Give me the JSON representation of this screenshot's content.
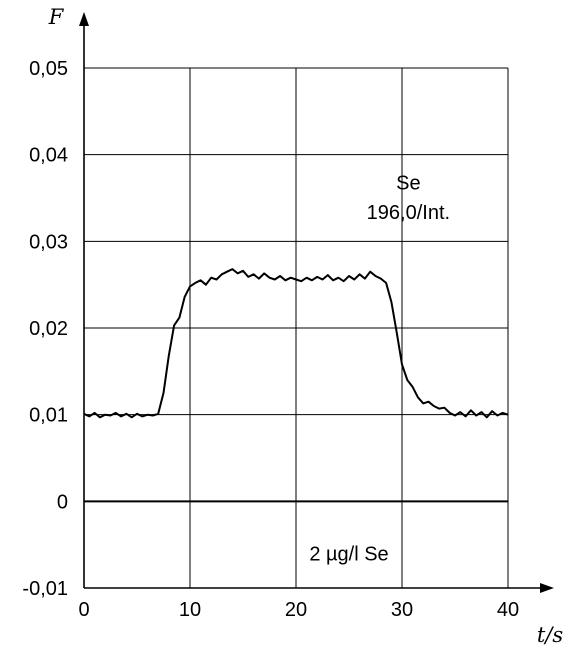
{
  "chart_data": {
    "type": "line",
    "ylabel": "F",
    "xlabel": "t/s",
    "xlim": [
      0,
      40
    ],
    "ylim": [
      -0.01,
      0.05
    ],
    "grid": true,
    "x_ticks": [
      0,
      10,
      20,
      30,
      40
    ],
    "x_tick_labels": [
      "0",
      "10",
      "20",
      "30",
      "40"
    ],
    "y_ticks": [
      -0.01,
      0,
      0.01,
      0.02,
      0.03,
      0.04,
      0.05
    ],
    "y_tick_labels": [
      "-0,01",
      "0",
      "0,01",
      "0,02",
      "0,03",
      "0,04",
      "0,05"
    ],
    "annotations": [
      {
        "text": "Se",
        "x": 30.6,
        "y": 0.0368
      },
      {
        "text": "196,0/Int.",
        "x": 30.6,
        "y": 0.0334
      },
      {
        "text": "2 µg/l Se",
        "x": 25.0,
        "y": -0.006
      }
    ],
    "series": [
      {
        "x": [
          0,
          0.5,
          1,
          1.5,
          2,
          2.5,
          3,
          3.5,
          4,
          4.5,
          5,
          5.5,
          6,
          6.5,
          7,
          7.5,
          8,
          8.5,
          9,
          9.5,
          10,
          10.5,
          11,
          11.5,
          12,
          12.5,
          13,
          13.5,
          14,
          14.5,
          15,
          15.5,
          16,
          16.5,
          17,
          17.5,
          18,
          18.5,
          19,
          19.5,
          20,
          20.5,
          21,
          21.5,
          22,
          22.5,
          23,
          23.5,
          24,
          24.5,
          25,
          25.5,
          26,
          26.5,
          27,
          27.5,
          28,
          28.5,
          29,
          29.5,
          30,
          30.5,
          31,
          31.5,
          32,
          32.5,
          33,
          33.5,
          34,
          34.5,
          35,
          35.5,
          36,
          36.5,
          37,
          37.5,
          38,
          38.5,
          39,
          39.5,
          40
        ],
        "values": [
          0.0101,
          0.0098,
          0.0102,
          0.0097,
          0.01,
          0.0099,
          0.0102,
          0.0098,
          0.0101,
          0.0097,
          0.0101,
          0.0098,
          0.01,
          0.0099,
          0.0101,
          0.0125,
          0.0168,
          0.0203,
          0.0212,
          0.0236,
          0.0248,
          0.0252,
          0.0255,
          0.025,
          0.0258,
          0.0256,
          0.0262,
          0.0265,
          0.0268,
          0.0263,
          0.0266,
          0.0259,
          0.0262,
          0.0257,
          0.0263,
          0.0258,
          0.0256,
          0.026,
          0.0255,
          0.0258,
          0.0256,
          0.0254,
          0.0258,
          0.0255,
          0.0259,
          0.0256,
          0.0261,
          0.0255,
          0.0258,
          0.0254,
          0.026,
          0.0256,
          0.0262,
          0.0257,
          0.0265,
          0.026,
          0.0257,
          0.0252,
          0.023,
          0.0195,
          0.0158,
          0.014,
          0.0132,
          0.012,
          0.0113,
          0.0115,
          0.011,
          0.0107,
          0.0108,
          0.0102,
          0.0099,
          0.0103,
          0.0098,
          0.0105,
          0.0099,
          0.0103,
          0.0097,
          0.0104,
          0.0099,
          0.0102,
          0.01
        ]
      }
    ]
  }
}
